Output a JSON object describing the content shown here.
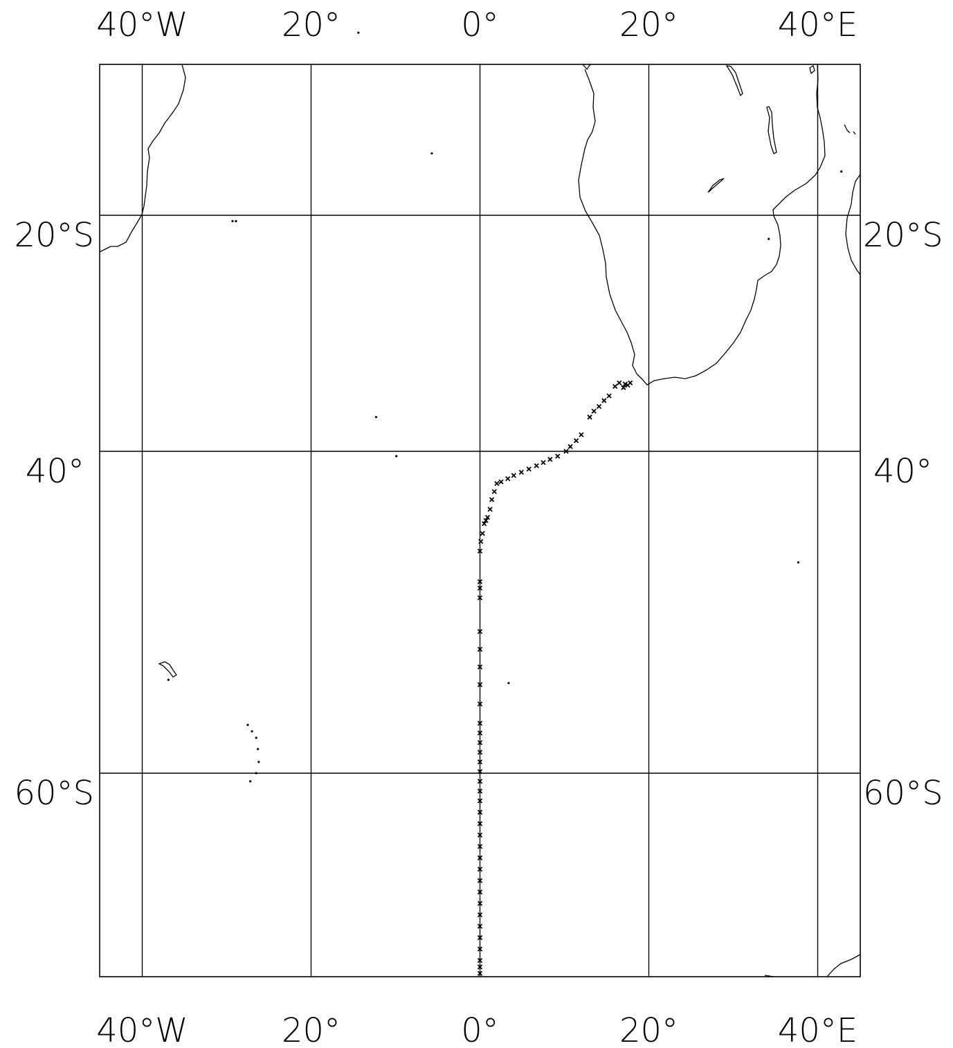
{
  "map": {
    "lon_labels": [
      {
        "lon": -40,
        "text": "40°W"
      },
      {
        "lon": -20,
        "text": "20°"
      },
      {
        "lon": 0,
        "text": "0°"
      },
      {
        "lon": 20,
        "text": "20°"
      },
      {
        "lon": 40,
        "text": "40°E"
      }
    ],
    "lat_labels": [
      {
        "lat": -20,
        "text": "20°S"
      },
      {
        "lat": -40,
        "text": "40°"
      },
      {
        "lat": -60,
        "text": "60°S"
      }
    ],
    "extent": {
      "lon_min": -45,
      "lon_max": 45,
      "lat_min": -72.5,
      "lat_max": -10
    },
    "grid": true,
    "colors": {
      "line": "#000000",
      "background": "#ffffff"
    },
    "stations": [
      {
        "lon": 17.8,
        "lat": -34.2
      },
      {
        "lon": 17.5,
        "lat": -34.4
      },
      {
        "lon": 17.2,
        "lat": -34.3
      },
      {
        "lon": 17.0,
        "lat": -34.6
      },
      {
        "lon": 16.5,
        "lat": -34.2
      },
      {
        "lon": 16.0,
        "lat": -34.5
      },
      {
        "lon": 15.3,
        "lat": -35.3
      },
      {
        "lon": 14.7,
        "lat": -35.7
      },
      {
        "lon": 14.1,
        "lat": -36.2
      },
      {
        "lon": 13.5,
        "lat": -36.6
      },
      {
        "lon": 13.0,
        "lat": -37.1
      },
      {
        "lon": 12.0,
        "lat": -38.6
      },
      {
        "lon": 11.4,
        "lat": -39.1
      },
      {
        "lon": 10.7,
        "lat": -39.6
      },
      {
        "lon": 10.2,
        "lat": -40.0
      },
      {
        "lon": 9.2,
        "lat": -40.3
      },
      {
        "lon": 8.3,
        "lat": -40.5
      },
      {
        "lon": 7.5,
        "lat": -40.7
      },
      {
        "lon": 6.7,
        "lat": -40.9
      },
      {
        "lon": 5.8,
        "lat": -41.1
      },
      {
        "lon": 4.9,
        "lat": -41.3
      },
      {
        "lon": 4.0,
        "lat": -41.5
      },
      {
        "lon": 3.3,
        "lat": -41.7
      },
      {
        "lon": 2.5,
        "lat": -41.9
      },
      {
        "lon": 2.0,
        "lat": -42.0
      },
      {
        "lon": 1.7,
        "lat": -42.5
      },
      {
        "lon": 1.4,
        "lat": -43.0
      },
      {
        "lon": 1.2,
        "lat": -43.6
      },
      {
        "lon": 0.9,
        "lat": -44.1
      },
      {
        "lon": 0.7,
        "lat": -44.3
      },
      {
        "lon": 0.5,
        "lat": -44.5
      },
      {
        "lon": 0.3,
        "lat": -45.1
      },
      {
        "lon": 0.1,
        "lat": -45.6
      },
      {
        "lon": 0.0,
        "lat": -46.2
      },
      {
        "lon": 0.0,
        "lat": -48.1
      },
      {
        "lon": 0.0,
        "lat": -48.5
      },
      {
        "lon": 0.0,
        "lat": -49.1
      },
      {
        "lon": 0.0,
        "lat": -51.2
      },
      {
        "lon": 0.0,
        "lat": -52.3
      },
      {
        "lon": 0.0,
        "lat": -53.4
      },
      {
        "lon": 0.0,
        "lat": -54.5
      },
      {
        "lon": 0.0,
        "lat": -55.7
      },
      {
        "lon": 0.0,
        "lat": -56.9
      },
      {
        "lon": 0.0,
        "lat": -57.5
      },
      {
        "lon": 0.0,
        "lat": -58.1
      },
      {
        "lon": 0.0,
        "lat": -58.7
      },
      {
        "lon": 0.0,
        "lat": -59.3
      },
      {
        "lon": 0.0,
        "lat": -59.9
      },
      {
        "lon": 0.0,
        "lat": -60.5
      },
      {
        "lon": 0.0,
        "lat": -61.1
      },
      {
        "lon": 0.0,
        "lat": -61.7
      },
      {
        "lon": 0.0,
        "lat": -62.4
      },
      {
        "lon": 0.0,
        "lat": -63.1
      },
      {
        "lon": 0.0,
        "lat": -63.8
      },
      {
        "lon": 0.0,
        "lat": -64.5
      },
      {
        "lon": 0.0,
        "lat": -65.2
      },
      {
        "lon": 0.0,
        "lat": -65.9
      },
      {
        "lon": 0.0,
        "lat": -66.6
      },
      {
        "lon": 0.0,
        "lat": -67.3
      },
      {
        "lon": 0.0,
        "lat": -68.0
      },
      {
        "lon": 0.0,
        "lat": -68.7
      },
      {
        "lon": 0.0,
        "lat": -69.4
      },
      {
        "lon": 0.0,
        "lat": -70.1
      },
      {
        "lon": 0.0,
        "lat": -70.8
      },
      {
        "lon": 0.0,
        "lat": -71.5
      },
      {
        "lon": 0.0,
        "lat": -71.9
      },
      {
        "lon": 0.0,
        "lat": -72.3
      }
    ],
    "islands": [
      {
        "lon": -14.4,
        "lat": -7.9
      },
      {
        "lon": -5.7,
        "lat": -15.9
      },
      {
        "lon": -29.3,
        "lat": -20.5
      },
      {
        "lon": -28.9,
        "lat": -20.5
      },
      {
        "lon": -12.3,
        "lat": -37.1
      },
      {
        "lon": -9.9,
        "lat": -40.3
      },
      {
        "lon": 3.4,
        "lat": -54.4
      },
      {
        "lon": 37.7,
        "lat": -46.9
      },
      {
        "lon": 42.8,
        "lat": -17.1
      },
      {
        "lon": 34.2,
        "lat": -22.0
      },
      {
        "lon": -27.5,
        "lat": -57.0
      },
      {
        "lon": -27.0,
        "lat": -57.4
      },
      {
        "lon": -26.5,
        "lat": -57.8
      },
      {
        "lon": -26.3,
        "lat": -58.5
      },
      {
        "lon": -26.2,
        "lat": -59.3
      },
      {
        "lon": -26.5,
        "lat": -60.0
      },
      {
        "lon": -27.2,
        "lat": -60.5
      },
      {
        "lon": -36.9,
        "lat": -54.2
      }
    ]
  }
}
